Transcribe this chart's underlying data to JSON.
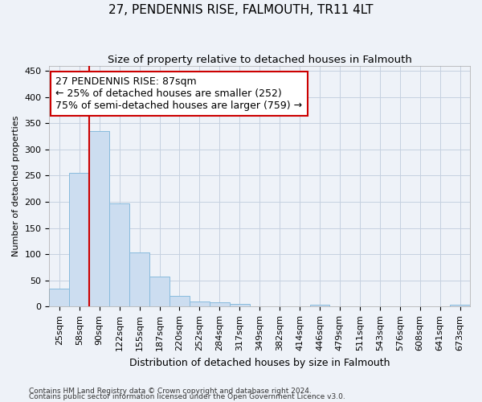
{
  "title": "27, PENDENNIS RISE, FALMOUTH, TR11 4LT",
  "subtitle": "Size of property relative to detached houses in Falmouth",
  "xlabel": "Distribution of detached houses by size in Falmouth",
  "ylabel": "Number of detached properties",
  "categories": [
    "25sqm",
    "58sqm",
    "90sqm",
    "122sqm",
    "155sqm",
    "187sqm",
    "220sqm",
    "252sqm",
    "284sqm",
    "317sqm",
    "349sqm",
    "382sqm",
    "414sqm",
    "446sqm",
    "479sqm",
    "511sqm",
    "543sqm",
    "576sqm",
    "608sqm",
    "641sqm",
    "673sqm"
  ],
  "values": [
    35,
    256,
    335,
    197,
    104,
    57,
    20,
    10,
    8,
    5,
    0,
    0,
    0,
    4,
    0,
    0,
    0,
    0,
    0,
    0,
    4
  ],
  "bar_color": "#ccddf0",
  "bar_edgecolor": "#88bbdd",
  "marker_color": "#cc0000",
  "marker_bar_index": 2,
  "ylim": [
    0,
    460
  ],
  "yticks": [
    0,
    50,
    100,
    150,
    200,
    250,
    300,
    350,
    400,
    450
  ],
  "annotation_line1": "27 PENDENNIS RISE: 87sqm",
  "annotation_line2": "← 25% of detached houses are smaller (252)",
  "annotation_line3": "75% of semi-detached houses are larger (759) →",
  "annotation_box_color": "#cc0000",
  "footnote1": "Contains HM Land Registry data © Crown copyright and database right 2024.",
  "footnote2": "Contains public sector information licensed under the Open Government Licence v3.0.",
  "background_color": "#eef2f8",
  "grid_color": "#c5d0e0",
  "title_fontsize": 11,
  "subtitle_fontsize": 9.5,
  "ylabel_fontsize": 8,
  "xlabel_fontsize": 9,
  "tick_fontsize": 8,
  "annot_fontsize": 9,
  "footnote_fontsize": 6.5
}
